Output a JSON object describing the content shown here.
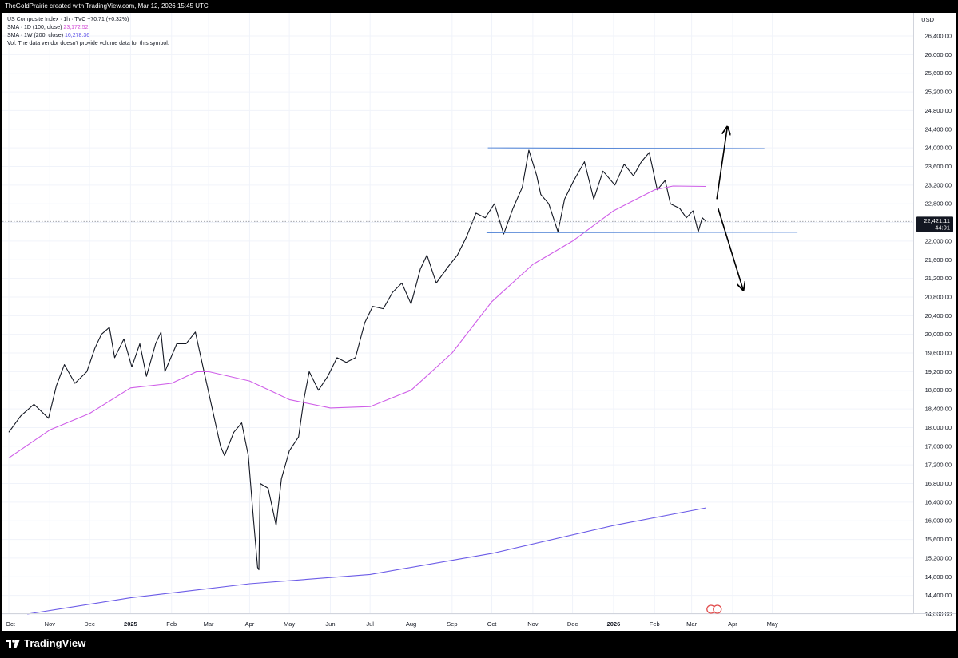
{
  "header": {
    "attribution": "TheGoldPrairie created with TradingView.com, Mar 12, 2026 15:45 UTC"
  },
  "legend": {
    "symbol_line": "US Composite Index · 1h · TVC  +70.71 (+0.32%)",
    "sma1_label": "SMA · 1D (100, close)",
    "sma1_value": "23,172.52",
    "sma2_label": "SMA · 1W (200, close)",
    "sma2_value": "16,278.36",
    "vol_note": "Vol: The data vendor doesn't provide volume data for this symbol."
  },
  "footer": {
    "brand": "TradingView",
    "logo_icon": "tradingview-logo-icon"
  },
  "chart_data": {
    "type": "line",
    "title": "US Composite Index · 1h · TVC",
    "currency": "USD",
    "last_price": "22,421.11",
    "countdown": "44:01",
    "ylim": [
      13800,
      26700
    ],
    "y_ticks": [
      14000,
      14400,
      14800,
      15200,
      15600,
      16000,
      16400,
      16800,
      17200,
      17600,
      18000,
      18400,
      18800,
      19200,
      19600,
      20000,
      20400,
      20800,
      21200,
      21600,
      22000,
      22400,
      22800,
      23200,
      23600,
      24000,
      24400,
      24800,
      25200,
      25600,
      26000,
      26400
    ],
    "x_ticks": [
      {
        "label": "Oct",
        "date": "2024-10-01"
      },
      {
        "label": "Nov",
        "date": "2024-11-01"
      },
      {
        "label": "Dec",
        "date": "2024-12-01"
      },
      {
        "label": "2025",
        "date": "2025-01-01",
        "bold": true
      },
      {
        "label": "Feb",
        "date": "2025-02-01"
      },
      {
        "label": "Mar",
        "date": "2025-03-01"
      },
      {
        "label": "Apr",
        "date": "2025-04-01"
      },
      {
        "label": "May",
        "date": "2025-05-01"
      },
      {
        "label": "Jun",
        "date": "2025-06-01"
      },
      {
        "label": "Jul",
        "date": "2025-07-01"
      },
      {
        "label": "Aug",
        "date": "2025-08-01"
      },
      {
        "label": "Sep",
        "date": "2025-09-01"
      },
      {
        "label": "Oct",
        "date": "2025-10-01"
      },
      {
        "label": "Nov",
        "date": "2025-11-01"
      },
      {
        "label": "Dec",
        "date": "2025-12-01"
      },
      {
        "label": "2026",
        "date": "2026-01-01",
        "bold": true
      },
      {
        "label": "Feb",
        "date": "2026-02-01"
      },
      {
        "label": "Mar",
        "date": "2026-03-01"
      },
      {
        "label": "Apr",
        "date": "2026-04-01"
      },
      {
        "label": "May",
        "date": "2026-05-01"
      }
    ],
    "series": [
      {
        "name": "US Composite Index",
        "color": "#131722",
        "points": [
          [
            "2024-10-01",
            17900
          ],
          [
            "2024-10-10",
            18250
          ],
          [
            "2024-10-20",
            18500
          ],
          [
            "2024-10-31",
            18200
          ],
          [
            "2024-11-06",
            18900
          ],
          [
            "2024-11-12",
            19350
          ],
          [
            "2024-11-20",
            18950
          ],
          [
            "2024-11-29",
            19200
          ],
          [
            "2024-12-05",
            19700
          ],
          [
            "2024-12-10",
            20000
          ],
          [
            "2024-12-16",
            20150
          ],
          [
            "2024-12-20",
            19500
          ],
          [
            "2024-12-27",
            19900
          ],
          [
            "2025-01-02",
            19300
          ],
          [
            "2025-01-08",
            19800
          ],
          [
            "2025-01-13",
            19100
          ],
          [
            "2025-01-20",
            19800
          ],
          [
            "2025-01-24",
            20050
          ],
          [
            "2025-01-27",
            19200
          ],
          [
            "2025-02-05",
            19800
          ],
          [
            "2025-02-12",
            19800
          ],
          [
            "2025-02-19",
            20050
          ],
          [
            "2025-02-24",
            19400
          ],
          [
            "2025-03-03",
            18500
          ],
          [
            "2025-03-10",
            17600
          ],
          [
            "2025-03-13",
            17400
          ],
          [
            "2025-03-20",
            17900
          ],
          [
            "2025-03-26",
            18100
          ],
          [
            "2025-03-31",
            17400
          ],
          [
            "2025-04-04",
            16000
          ],
          [
            "2025-04-07",
            15000
          ],
          [
            "2025-04-08",
            14950
          ],
          [
            "2025-04-09",
            16800
          ],
          [
            "2025-04-15",
            16700
          ],
          [
            "2025-04-21",
            15900
          ],
          [
            "2025-04-25",
            16900
          ],
          [
            "2025-05-01",
            17500
          ],
          [
            "2025-05-08",
            17800
          ],
          [
            "2025-05-12",
            18600
          ],
          [
            "2025-05-16",
            19200
          ],
          [
            "2025-05-23",
            18800
          ],
          [
            "2025-05-30",
            19100
          ],
          [
            "2025-06-06",
            19500
          ],
          [
            "2025-06-13",
            19400
          ],
          [
            "2025-06-20",
            19500
          ],
          [
            "2025-06-27",
            20250
          ],
          [
            "2025-07-03",
            20600
          ],
          [
            "2025-07-11",
            20550
          ],
          [
            "2025-07-18",
            20900
          ],
          [
            "2025-07-25",
            21100
          ],
          [
            "2025-08-01",
            20650
          ],
          [
            "2025-08-08",
            21400
          ],
          [
            "2025-08-13",
            21700
          ],
          [
            "2025-08-20",
            21100
          ],
          [
            "2025-08-29",
            21450
          ],
          [
            "2025-09-05",
            21700
          ],
          [
            "2025-09-12",
            22100
          ],
          [
            "2025-09-19",
            22600
          ],
          [
            "2025-09-26",
            22500
          ],
          [
            "2025-10-03",
            22800
          ],
          [
            "2025-10-10",
            22150
          ],
          [
            "2025-10-17",
            22700
          ],
          [
            "2025-10-24",
            23150
          ],
          [
            "2025-10-29",
            23950
          ],
          [
            "2025-11-04",
            23400
          ],
          [
            "2025-11-07",
            23000
          ],
          [
            "2025-11-13",
            22800
          ],
          [
            "2025-11-20",
            22200
          ],
          [
            "2025-11-25",
            22900
          ],
          [
            "2025-12-02",
            23300
          ],
          [
            "2025-12-10",
            23700
          ],
          [
            "2025-12-17",
            22900
          ],
          [
            "2025-12-24",
            23500
          ],
          [
            "2026-01-02",
            23200
          ],
          [
            "2026-01-09",
            23650
          ],
          [
            "2026-01-16",
            23400
          ],
          [
            "2026-01-22",
            23700
          ],
          [
            "2026-01-28",
            23900
          ],
          [
            "2026-02-03",
            23100
          ],
          [
            "2026-02-09",
            23300
          ],
          [
            "2026-02-13",
            22800
          ],
          [
            "2026-02-20",
            22700
          ],
          [
            "2026-02-25",
            22500
          ],
          [
            "2026-03-02",
            22650
          ],
          [
            "2026-03-06",
            22200
          ],
          [
            "2026-03-09",
            22500
          ],
          [
            "2026-03-12",
            22421
          ]
        ]
      },
      {
        "name": "SMA · 1D (100, close)",
        "color": "#cf5ee8",
        "points": [
          [
            "2024-10-01",
            17350
          ],
          [
            "2024-11-01",
            17950
          ],
          [
            "2024-12-01",
            18300
          ],
          [
            "2025-01-01",
            18850
          ],
          [
            "2025-02-01",
            18950
          ],
          [
            "2025-02-20",
            19200
          ],
          [
            "2025-03-01",
            19200
          ],
          [
            "2025-04-01",
            19000
          ],
          [
            "2025-05-01",
            18600
          ],
          [
            "2025-06-01",
            18420
          ],
          [
            "2025-07-01",
            18450
          ],
          [
            "2025-08-01",
            18800
          ],
          [
            "2025-09-01",
            19600
          ],
          [
            "2025-10-01",
            20700
          ],
          [
            "2025-11-01",
            21500
          ],
          [
            "2025-12-01",
            22000
          ],
          [
            "2026-01-01",
            22650
          ],
          [
            "2026-02-01",
            23100
          ],
          [
            "2026-02-15",
            23180
          ],
          [
            "2026-03-12",
            23172
          ]
        ]
      },
      {
        "name": "SMA · 1W (200, close)",
        "color": "#6c5ce7",
        "points": [
          [
            "2024-10-15",
            14000
          ],
          [
            "2025-01-01",
            14350
          ],
          [
            "2025-04-01",
            14650
          ],
          [
            "2025-07-01",
            14850
          ],
          [
            "2025-10-01",
            15300
          ],
          [
            "2026-01-01",
            15900
          ],
          [
            "2026-03-12",
            16278
          ]
        ]
      }
    ],
    "annotations": [
      {
        "type": "line",
        "name": "resistance",
        "color": "#5a8ad8",
        "from": [
          "2025-09-28",
          24000
        ],
        "to": [
          "2026-04-25",
          23985
        ]
      },
      {
        "type": "line",
        "name": "support",
        "color": "#5a8ad8",
        "from": [
          "2025-09-27",
          22180
        ],
        "to": [
          "2026-05-20",
          22190
        ]
      },
      {
        "type": "arrow",
        "name": "breakout-up",
        "color": "#000000",
        "from": [
          "2026-03-20",
          22900
        ],
        "to": [
          "2026-03-28",
          24450
        ]
      },
      {
        "type": "arrow",
        "name": "breakdown-down",
        "color": "#000000",
        "from": [
          "2026-03-21",
          22700
        ],
        "to": [
          "2026-04-09",
          20950
        ]
      }
    ]
  }
}
